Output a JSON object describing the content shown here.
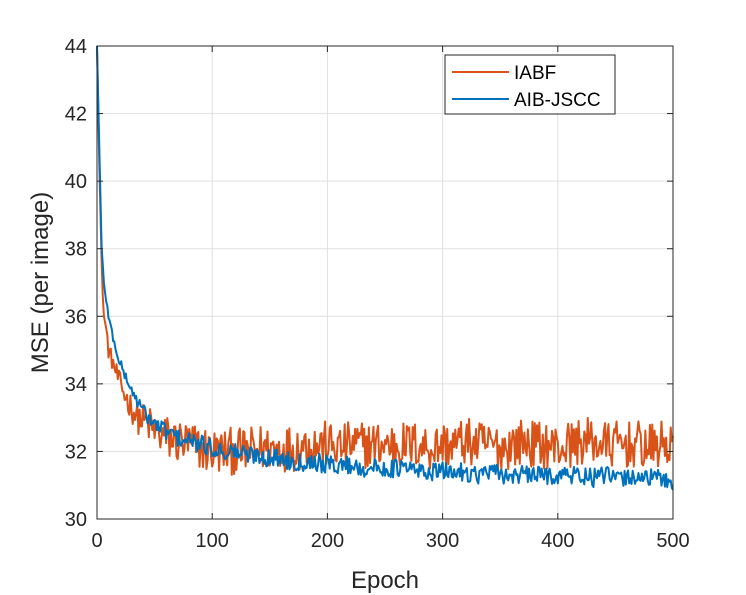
{
  "chart_data": {
    "type": "line",
    "title": "",
    "xlabel": "Epoch",
    "ylabel": "MSE (per image)",
    "xlim": [
      0,
      500
    ],
    "ylim": [
      30,
      44
    ],
    "x_ticks": [
      0,
      100,
      200,
      300,
      400,
      500
    ],
    "y_ticks": [
      30,
      32,
      34,
      36,
      38,
      40,
      42,
      44
    ],
    "grid": true,
    "legend_position": "top-right",
    "series": [
      {
        "name": "IABF",
        "color": "#d95319",
        "x": [
          0,
          2,
          4,
          6,
          8,
          10,
          15,
          20,
          25,
          30,
          35,
          40,
          45,
          50,
          55,
          60,
          70,
          80,
          90,
          100,
          110,
          120,
          130,
          140,
          150,
          160,
          170,
          180,
          190,
          200,
          210,
          220,
          230,
          240,
          250,
          260,
          270,
          280,
          290,
          300,
          310,
          320,
          330,
          340,
          350,
          360,
          370,
          380,
          390,
          400,
          410,
          420,
          430,
          440,
          450,
          460,
          470,
          480,
          490,
          500
        ],
        "values": [
          44,
          40.5,
          37.5,
          36,
          35.6,
          35,
          34.5,
          34,
          33.6,
          33.3,
          33,
          32.9,
          32.8,
          32.6,
          32.5,
          32.4,
          32.3,
          32.2,
          32.1,
          32,
          32,
          32,
          32,
          32.1,
          32.1,
          32.1,
          32.1,
          32.2,
          32.2,
          32.2,
          32.1,
          32.2,
          32.2,
          32.2,
          32.2,
          32.2,
          32.2,
          32.2,
          32.1,
          32.2,
          32.2,
          32.3,
          32.2,
          32.2,
          32.1,
          32.2,
          32.3,
          32.2,
          32.2,
          32.1,
          32.2,
          32.3,
          32.3,
          32.2,
          32.2,
          32.2,
          32.2,
          32.1,
          32.2,
          32.2
        ]
      },
      {
        "name": "AIB-JSCC",
        "color": "#0072bd",
        "x": [
          0,
          2,
          4,
          6,
          8,
          10,
          15,
          20,
          25,
          30,
          35,
          40,
          45,
          50,
          55,
          60,
          70,
          80,
          90,
          100,
          110,
          120,
          130,
          140,
          150,
          160,
          170,
          180,
          190,
          200,
          210,
          220,
          230,
          240,
          250,
          260,
          270,
          280,
          290,
          300,
          310,
          320,
          330,
          340,
          350,
          360,
          370,
          380,
          390,
          400,
          410,
          420,
          430,
          440,
          450,
          460,
          470,
          480,
          490,
          500
        ],
        "values": [
          44,
          41,
          38,
          37,
          36.5,
          36,
          35.2,
          34.6,
          34.2,
          33.8,
          33.5,
          33.2,
          33,
          32.8,
          32.7,
          32.6,
          32.4,
          32.3,
          32.2,
          32.1,
          32,
          32,
          31.9,
          31.9,
          31.8,
          31.8,
          31.7,
          31.7,
          31.7,
          31.6,
          31.6,
          31.6,
          31.5,
          31.5,
          31.5,
          31.5,
          31.5,
          31.4,
          31.4,
          31.4,
          31.4,
          31.4,
          31.3,
          31.4,
          31.3,
          31.3,
          31.3,
          31.3,
          31.3,
          31.3,
          31.3,
          31.3,
          31.2,
          31.3,
          31.2,
          31.2,
          31.3,
          31.2,
          31.2,
          31.1
        ]
      }
    ]
  }
}
